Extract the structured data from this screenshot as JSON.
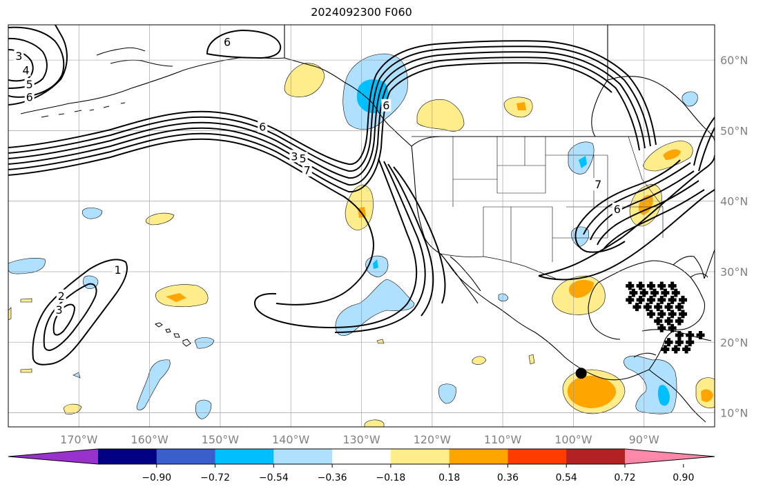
{
  "title": "2024092300 F060",
  "map": {
    "extent": {
      "lon_min": -180,
      "lon_max": -80,
      "lat_min": 8,
      "lat_max": 65
    },
    "lon_ticks": [
      {
        "lon": -170,
        "label": "170°W"
      },
      {
        "lon": -160,
        "label": "160°W"
      },
      {
        "lon": -150,
        "label": "150°W"
      },
      {
        "lon": -140,
        "label": "140°W"
      },
      {
        "lon": -130,
        "label": "130°W"
      },
      {
        "lon": -120,
        "label": "120°W"
      },
      {
        "lon": -110,
        "label": "110°W"
      },
      {
        "lon": -100,
        "label": "100°W"
      },
      {
        "lon": -90,
        "label": "90°W"
      }
    ],
    "lat_ticks": [
      {
        "lat": 10,
        "label": "10°N"
      },
      {
        "lat": 20,
        "label": "20°N"
      },
      {
        "lat": 30,
        "label": "30°N"
      },
      {
        "lat": 40,
        "label": "40°N"
      },
      {
        "lat": 50,
        "label": "50°N"
      },
      {
        "lat": 60,
        "label": "60°N"
      }
    ],
    "contour_labels": [
      {
        "text": "6",
        "lon": -149,
        "lat": 62.5
      },
      {
        "text": "3",
        "lon": -178.5,
        "lat": 60.5
      },
      {
        "text": "4",
        "lon": -177.5,
        "lat": 58.5
      },
      {
        "text": "5",
        "lon": -177,
        "lat": 56.5
      },
      {
        "text": "6",
        "lon": -177,
        "lat": 54.7
      },
      {
        "text": "6",
        "lon": -144,
        "lat": 50.5
      },
      {
        "text": "3",
        "lon": -139.5,
        "lat": 46.3
      },
      {
        "text": "5",
        "lon": -138.3,
        "lat": 46.0
      },
      {
        "text": "7",
        "lon": -137.7,
        "lat": 44.3
      },
      {
        "text": "1",
        "lon": -164.5,
        "lat": 30.2
      },
      {
        "text": "2",
        "lon": -172.5,
        "lat": 26.5
      },
      {
        "text": "3",
        "lon": -172.8,
        "lat": 24.5
      },
      {
        "text": "6",
        "lon": -126.5,
        "lat": 53.5
      },
      {
        "text": "7",
        "lon": -96.5,
        "lat": 42.3
      },
      {
        "text": "6",
        "lon": -93.8,
        "lat": 38.8
      }
    ],
    "marker": {
      "lon": -98.9,
      "lat": 15.6
    },
    "cross_markers": [
      [
        -92,
        28
      ],
      [
        -90.5,
        28
      ],
      [
        -89,
        28
      ],
      [
        -87.5,
        28
      ],
      [
        -86,
        28
      ],
      [
        -91.5,
        27
      ],
      [
        -90,
        27
      ],
      [
        -88.5,
        27
      ],
      [
        -87,
        27
      ],
      [
        -85.5,
        27
      ],
      [
        -92,
        26
      ],
      [
        -90.5,
        26
      ],
      [
        -89,
        26
      ],
      [
        -87.5,
        26
      ],
      [
        -86,
        26
      ],
      [
        -84.5,
        26
      ],
      [
        -91,
        25
      ],
      [
        -89.5,
        25
      ],
      [
        -88,
        25
      ],
      [
        -86.5,
        25
      ],
      [
        -85,
        25
      ],
      [
        -89,
        24
      ],
      [
        -87.5,
        24
      ],
      [
        -86,
        24
      ],
      [
        -84.5,
        24
      ],
      [
        -88,
        23
      ],
      [
        -86.5,
        23
      ],
      [
        -85,
        23
      ],
      [
        -87.5,
        22
      ],
      [
        -86,
        22
      ],
      [
        -85,
        21
      ],
      [
        -83.5,
        21
      ],
      [
        -82,
        21
      ],
      [
        -86.5,
        20
      ],
      [
        -85,
        20
      ],
      [
        -83.5,
        20
      ],
      [
        -87,
        19
      ],
      [
        -85.5,
        19
      ],
      [
        -84,
        19
      ]
    ]
  },
  "colorbar": {
    "colors": [
      "#9932cc",
      "#000080",
      "#3a5fcd",
      "#00bfff",
      "#afe0ff",
      "#ffffff",
      "#ffec8b",
      "#ffa500",
      "#ff3c00",
      "#b22222",
      "#ff88aa"
    ],
    "tick_labels": [
      "−0.90",
      "−0.72",
      "−0.54",
      "−0.36",
      "−0.18",
      "0.18",
      "0.36",
      "0.54",
      "0.72",
      "0.90"
    ]
  }
}
